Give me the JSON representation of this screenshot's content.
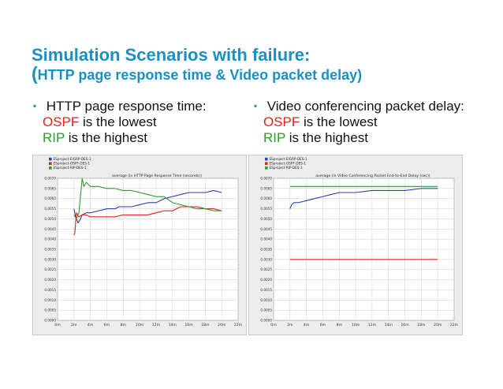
{
  "slide": {
    "title": "Simulation Scenarios with failure:",
    "subtitle_paren": "(",
    "subtitle": "HTTP page response time & Video packet delay)"
  },
  "left_bullets": {
    "heading": "HTTP page response time:",
    "line2_protocol": "OSPF",
    "line2_rest": " is the lowest",
    "line3_protocol": "RIP",
    "line3_rest": " is the highest"
  },
  "right_bullets": {
    "heading": "Video conferencing packet delay:",
    "line2_protocol": "OSPF",
    "line2_rest": " is the lowest",
    "line3_protocol": "RIP",
    "line3_rest": " is the highest"
  },
  "colors": {
    "accent": "#1a8fc4",
    "ospf": "#e0221c",
    "rip": "#2f9a2f",
    "eigrp": "#2b3fb0"
  },
  "chart_data": [
    {
      "type": "line",
      "title": "average (in HTTP Page Response Time (seconds))",
      "xlabel": "",
      "ylabel": "",
      "ylim": [
        0,
        0.007
      ],
      "yticks": [
        "0.0070",
        "0.0065",
        "0.0060",
        "0.0055",
        "0.0050",
        "0.0045",
        "0.0040",
        "0.0035",
        "0.0030",
        "0.0025",
        "0.0020",
        "0.0015",
        "0.0010",
        "0.0005",
        "0.0000"
      ],
      "xlim": [
        0,
        22
      ],
      "xticks": [
        "0m",
        "2m",
        "4m",
        "6m",
        "8m",
        "10m",
        "12m",
        "14m",
        "16m",
        "18m",
        "20m",
        "22m"
      ],
      "legend_position": "top-left",
      "grid": true,
      "series": [
        {
          "name": "ESproject-EIGRP-DES-1",
          "color": "#2b3fb0",
          "x": [
            2.0,
            2.2,
            2.5,
            2.8,
            3.0,
            3.5,
            4.0,
            5.0,
            6.0,
            7.0,
            7.5,
            8.0,
            9.0,
            10.0,
            11.0,
            12.0,
            13.0,
            14.0,
            15.0,
            16.0,
            17.0,
            18.0,
            19.0,
            20.0
          ],
          "y": [
            0.0055,
            0.0051,
            0.0048,
            0.005,
            0.0052,
            0.0053,
            0.0053,
            0.0054,
            0.0055,
            0.0055,
            0.0056,
            0.0056,
            0.0056,
            0.0057,
            0.0058,
            0.0058,
            0.006,
            0.0061,
            0.0062,
            0.0063,
            0.0063,
            0.0063,
            0.0064,
            0.0063
          ]
        },
        {
          "name": "ESproject-OSPF-DES-1",
          "color": "#e0221c",
          "x": [
            2.0,
            2.1,
            2.3,
            2.6,
            3.0,
            3.5,
            4.0,
            5.0,
            6.0,
            7.0,
            8.0,
            9.0,
            10.0,
            11.0,
            12.0,
            13.0,
            14.0,
            15.0,
            16.0,
            17.0,
            18.0,
            19.0,
            20.0
          ],
          "y": [
            0.0042,
            0.0043,
            0.0053,
            0.0051,
            0.0052,
            0.0052,
            0.0051,
            0.0051,
            0.0051,
            0.0051,
            0.0052,
            0.0052,
            0.0052,
            0.0052,
            0.0053,
            0.0054,
            0.0054,
            0.0056,
            0.0056,
            0.0056,
            0.0055,
            0.0055,
            0.0054
          ]
        },
        {
          "name": "ESproject-RIP-DES-1",
          "color": "#2f9a2f",
          "x": [
            2.0,
            2.3,
            2.6,
            3.0,
            3.2,
            3.5,
            4.0,
            5.0,
            6.0,
            7.0,
            8.0,
            9.0,
            10.0,
            11.0,
            12.0,
            13.0,
            14.0,
            15.0,
            16.0,
            17.0,
            18.0,
            19.0,
            20.0
          ],
          "y": [
            0.0052,
            0.005,
            0.0053,
            0.007,
            0.0066,
            0.0068,
            0.0066,
            0.0066,
            0.0065,
            0.0065,
            0.0064,
            0.0064,
            0.0063,
            0.0062,
            0.0061,
            0.0061,
            0.0058,
            0.0057,
            0.0056,
            0.0055,
            0.0055,
            0.0054,
            0.0054
          ]
        }
      ]
    },
    {
      "type": "line",
      "title": "average (in Video Conferencing Packet End-to-End Delay (sec))",
      "xlabel": "",
      "ylabel": "",
      "ylim": [
        0,
        0.007
      ],
      "yticks": [
        "0.0070",
        "0.0065",
        "0.0060",
        "0.0055",
        "0.0050",
        "0.0045",
        "0.0040",
        "0.0035",
        "0.0030",
        "0.0025",
        "0.0020",
        "0.0015",
        "0.0010",
        "0.0005",
        "0.0000"
      ],
      "xlim": [
        0,
        22
      ],
      "xticks": [
        "0m",
        "2m",
        "4m",
        "6m",
        "8m",
        "10m",
        "12m",
        "14m",
        "16m",
        "18m",
        "20m",
        "22m"
      ],
      "legend_position": "top-left",
      "grid": true,
      "series": [
        {
          "name": "ESproject-EIGRP-DES-1",
          "color": "#2b3fb0",
          "x": [
            2.0,
            2.2,
            2.5,
            3.0,
            4.0,
            5.0,
            6.0,
            7.0,
            8.0,
            10.0,
            12.0,
            14.0,
            16.0,
            18.0,
            20.0
          ],
          "y": [
            0.0055,
            0.0057,
            0.0058,
            0.0058,
            0.0059,
            0.006,
            0.0061,
            0.0062,
            0.0063,
            0.0063,
            0.0064,
            0.0064,
            0.0064,
            0.0065,
            0.0065
          ]
        },
        {
          "name": "ESproject-OSPF-DES-1",
          "color": "#e0221c",
          "x": [
            2.0,
            20.0
          ],
          "y": [
            0.003,
            0.003
          ]
        },
        {
          "name": "ESproject-RIP-DES-1",
          "color": "#2f9a2f",
          "x": [
            2.0,
            20.0
          ],
          "y": [
            0.0066,
            0.0066
          ]
        }
      ]
    }
  ]
}
